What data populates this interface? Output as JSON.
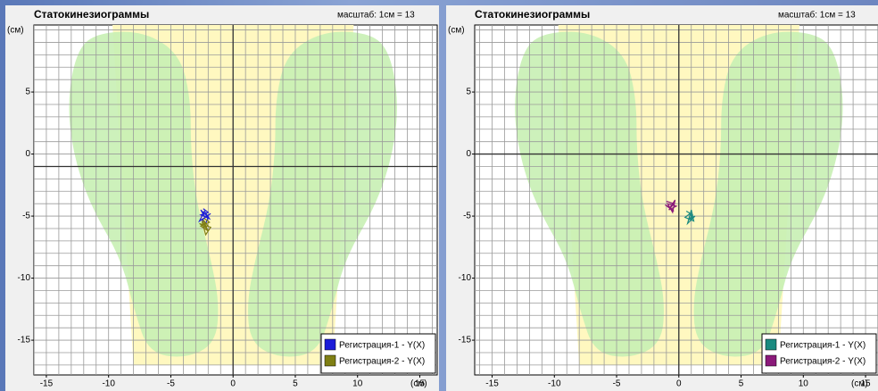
{
  "chart_data": [
    {
      "type": "line",
      "title": "Статокинезиограммы",
      "scale_label": "масштаб: 1см = 13",
      "y_unit": "(см)",
      "x_unit": "(см)",
      "xlim": [
        -16,
        16.4
      ],
      "ylim": [
        -17.8,
        10.4
      ],
      "xticks": [
        -15,
        -10,
        -5,
        0,
        5,
        10,
        15
      ],
      "yticks": [
        -15,
        -10,
        -5,
        0,
        5
      ],
      "crosshair": [
        0,
        -1
      ],
      "grid": true,
      "legend": "lower right",
      "series": [
        {
          "name": "Регистрация-1 - Y(X)",
          "color": "#1c1cd8",
          "x": [
            -2.4,
            -2.0,
            -2.6,
            -1.9,
            -2.3,
            -2.7,
            -2.1,
            -1.8,
            -2.5,
            -2.2,
            -2.0,
            -2.6,
            -2.3
          ],
          "values": [
            -4.4,
            -4.7,
            -4.9,
            -5.2,
            -4.6,
            -5.4,
            -5.0,
            -4.8,
            -5.3,
            -5.6,
            -5.1,
            -4.5,
            -5.0
          ]
        },
        {
          "name": "Регистрация-2 - Y(X)",
          "color": "#7f7f14",
          "x": [
            -2.3,
            -1.9,
            -2.6,
            -2.0,
            -2.5,
            -2.2,
            -1.8,
            -2.7,
            -2.1,
            -2.4,
            -2.0
          ],
          "values": [
            -5.2,
            -5.5,
            -5.8,
            -6.2,
            -5.4,
            -6.5,
            -5.9,
            -5.6,
            -6.0,
            -5.3,
            -5.8
          ]
        }
      ]
    },
    {
      "type": "line",
      "title": "Статокинезиограммы",
      "scale_label": "масштаб: 1см = 13",
      "y_unit": "(см)",
      "x_unit": "(см)",
      "xlim": [
        -16.4,
        16
      ],
      "ylim": [
        -17.8,
        10.4
      ],
      "xticks": [
        -15,
        -10,
        -5,
        0,
        5,
        10,
        15
      ],
      "yticks": [
        -15,
        -10,
        -5,
        0,
        5
      ],
      "crosshair": [
        0,
        0
      ],
      "grid": true,
      "legend": "lower right",
      "series": [
        {
          "name": "Регистрация-1 - Y(X)",
          "color": "#1a8a80",
          "x": [
            0.6,
            1.1,
            0.8,
            1.3,
            0.7,
            1.0,
            1.2,
            0.5,
            0.9,
            1.1
          ],
          "values": [
            -4.6,
            -4.9,
            -5.3,
            -5.0,
            -5.6,
            -4.5,
            -5.4,
            -5.1,
            -4.8,
            -5.2
          ]
        },
        {
          "name": "Регистрация-2 - Y(X)",
          "color": "#8b1a7a",
          "x": [
            -1.0,
            -0.4,
            -0.8,
            -0.2,
            -0.9,
            -0.5,
            -0.3,
            -0.7,
            -1.1,
            -0.4,
            -0.6
          ],
          "values": [
            -3.8,
            -4.0,
            -4.5,
            -4.2,
            -4.0,
            -4.7,
            -3.7,
            -4.3,
            -4.1,
            -4.6,
            -4.4
          ]
        }
      ]
    }
  ]
}
